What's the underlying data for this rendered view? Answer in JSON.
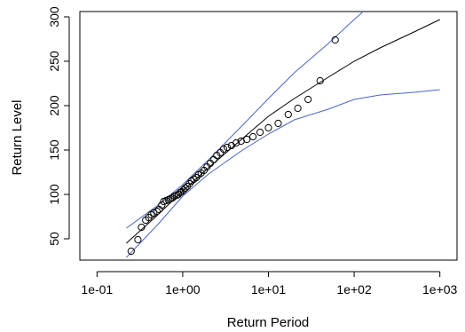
{
  "chart_data": {
    "type": "scatter",
    "title": "",
    "xlabel": "Return Period",
    "ylabel": "Return Level",
    "x_scale": "log",
    "xlim": [
      0.0631,
      1585
    ],
    "ylim": [
      26,
      306
    ],
    "x_ticks": [
      {
        "value": 0.1,
        "label": "1e-01"
      },
      {
        "value": 1,
        "label": "1e+00"
      },
      {
        "value": 10,
        "label": "1e+01"
      },
      {
        "value": 100,
        "label": "1e+02"
      },
      {
        "value": 1000,
        "label": "1e+03"
      }
    ],
    "y_ticks": [
      {
        "value": 50,
        "label": "50"
      },
      {
        "value": 100,
        "label": "100"
      },
      {
        "value": 150,
        "label": "150"
      },
      {
        "value": 200,
        "label": "200"
      },
      {
        "value": 250,
        "label": "250"
      },
      {
        "value": 300,
        "label": "300"
      }
    ],
    "grid": false,
    "series": [
      {
        "kind": "points",
        "marker": "open-circle",
        "color": "#000000",
        "points": [
          [
            0.25,
            36
          ],
          [
            0.3,
            49
          ],
          [
            0.33,
            63
          ],
          [
            0.37,
            71
          ],
          [
            0.4,
            74
          ],
          [
            0.43,
            77
          ],
          [
            0.46,
            79
          ],
          [
            0.5,
            81
          ],
          [
            0.53,
            83
          ],
          [
            0.57,
            88
          ],
          [
            0.6,
            92
          ],
          [
            0.64,
            93
          ],
          [
            0.68,
            94
          ],
          [
            0.72,
            95
          ],
          [
            0.76,
            96
          ],
          [
            0.8,
            98
          ],
          [
            0.85,
            99
          ],
          [
            0.89,
            100
          ],
          [
            0.93,
            102
          ],
          [
            0.97,
            103
          ],
          [
            1.02,
            105
          ],
          [
            1.07,
            107
          ],
          [
            1.13,
            109
          ],
          [
            1.2,
            112
          ],
          [
            1.27,
            115
          ],
          [
            1.35,
            117
          ],
          [
            1.44,
            119
          ],
          [
            1.53,
            122
          ],
          [
            1.64,
            124
          ],
          [
            1.77,
            127
          ],
          [
            1.92,
            131
          ],
          [
            2.1,
            135
          ],
          [
            2.3,
            139
          ],
          [
            2.5,
            144
          ],
          [
            2.75,
            147
          ],
          [
            3.0,
            151
          ],
          [
            3.3,
            153
          ],
          [
            3.7,
            155
          ],
          [
            4.2,
            158
          ],
          [
            4.8,
            160
          ],
          [
            5.6,
            162
          ],
          [
            6.6,
            165
          ],
          [
            8.0,
            170
          ],
          [
            10.0,
            175
          ],
          [
            13.0,
            180
          ],
          [
            17.0,
            190
          ],
          [
            22.0,
            197
          ],
          [
            29.0,
            207
          ],
          [
            40.0,
            228
          ],
          [
            60.0,
            274
          ]
        ]
      },
      {
        "kind": "line",
        "color": "#000000",
        "points": [
          [
            0.22,
            45
          ],
          [
            0.5,
            76
          ],
          [
            1,
            104
          ],
          [
            2,
            130
          ],
          [
            5,
            163
          ],
          [
            10,
            188
          ],
          [
            20,
            208
          ],
          [
            50,
            232
          ],
          [
            100,
            250
          ],
          [
            200,
            265
          ],
          [
            500,
            283
          ],
          [
            1000,
            297
          ]
        ]
      },
      {
        "kind": "line",
        "color": "#4a64c8",
        "points": [
          [
            0.22,
            62
          ],
          [
            0.5,
            87
          ],
          [
            1,
            111
          ],
          [
            2,
            139
          ],
          [
            5,
            178
          ],
          [
            10,
            208
          ],
          [
            20,
            237
          ],
          [
            50,
            270
          ],
          [
            100,
            297
          ],
          [
            150,
            312
          ]
        ]
      },
      {
        "kind": "line",
        "color": "#4a64c8",
        "points": [
          [
            0.22,
            29
          ],
          [
            0.5,
            65
          ],
          [
            1,
            98
          ],
          [
            2,
            123
          ],
          [
            5,
            150
          ],
          [
            10,
            168
          ],
          [
            20,
            184
          ],
          [
            50,
            196
          ],
          [
            100,
            207
          ],
          [
            200,
            212
          ],
          [
            500,
            215
          ],
          [
            1000,
            218
          ]
        ]
      }
    ]
  }
}
